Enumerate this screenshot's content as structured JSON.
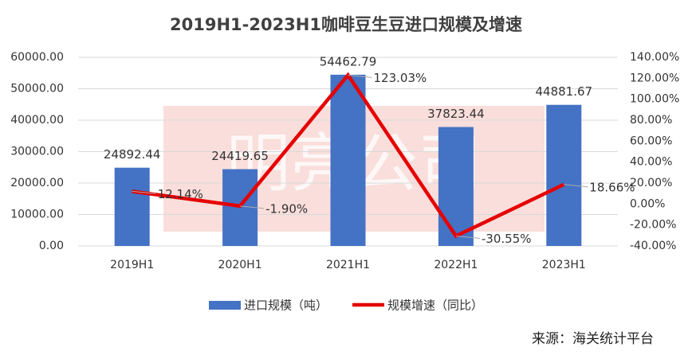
{
  "chart_data": {
    "type": "bar-line",
    "title": "2019H1-2023H1咖啡豆生豆进口规模及增速",
    "watermark": "明亮公司",
    "source": "来源：海关统计平台",
    "categories": [
      "2019H1",
      "2020H1",
      "2021H1",
      "2022H1",
      "2023H1"
    ],
    "series": [
      {
        "name": "进口规模（吨）",
        "color": "#4472c4",
        "type": "bar",
        "values": [
          24892.44,
          24419.65,
          54462.79,
          37823.44,
          44881.67
        ]
      },
      {
        "name": "规模增速（同比）",
        "color": "#e60000",
        "type": "line",
        "axis": "y2",
        "values": [
          12.14,
          -1.9,
          123.03,
          -30.55,
          18.66
        ],
        "value_labels": [
          "12.14%",
          "-1.90%",
          "123.03%",
          "-30.55%",
          "18.66%"
        ]
      }
    ],
    "ylim": [
      0,
      60000
    ],
    "yticks": [
      {
        "value": 0,
        "label": "0.00"
      },
      {
        "value": 10000,
        "label": "10000.00"
      },
      {
        "value": 20000,
        "label": "20000.00"
      },
      {
        "value": 30000,
        "label": "30000.00"
      },
      {
        "value": 40000,
        "label": "40000.00"
      },
      {
        "value": 50000,
        "label": "50000.00"
      },
      {
        "value": 60000,
        "label": "60000.00"
      }
    ],
    "y2lim": [
      -40,
      140
    ],
    "y2ticks": [
      {
        "value": -40,
        "label": "-40.00%"
      },
      {
        "value": -20,
        "label": "-20.00%"
      },
      {
        "value": 0,
        "label": "0.00%"
      },
      {
        "value": 20,
        "label": "20.00%"
      },
      {
        "value": 40,
        "label": "40.00%"
      },
      {
        "value": 60,
        "label": "60.00%"
      },
      {
        "value": 80,
        "label": "80.00%"
      },
      {
        "value": 100,
        "label": "100.00%"
      },
      {
        "value": 120,
        "label": "120.00%"
      },
      {
        "value": 140,
        "label": "140.00%"
      }
    ],
    "grid": true
  }
}
